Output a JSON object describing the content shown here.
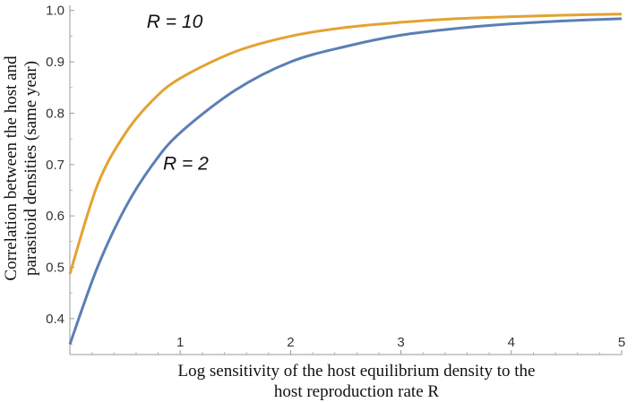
{
  "chart_data": {
    "type": "line",
    "title": "",
    "xlabel_line1": "Log sensitivity of the host equilibrium density to the",
    "xlabel_line2": "host reproduction rate R",
    "ylabel_line1": "Correlation between the host and",
    "ylabel_line2": "parasitoid densities (same year)",
    "xlim": [
      0,
      5
    ],
    "ylim": [
      0.33,
      1.01
    ],
    "x_ticks": [
      "1",
      "2",
      "3",
      "4",
      "5"
    ],
    "y_ticks": [
      "0.4",
      "0.5",
      "0.6",
      "0.7",
      "0.8",
      "0.9",
      "1.0"
    ],
    "grid": false,
    "series": [
      {
        "name": "R = 10",
        "color": "#e3a231",
        "x": [
          0,
          0.25,
          0.5,
          0.75,
          1.0,
          1.5,
          2.0,
          2.5,
          3.0,
          3.5,
          4.0,
          4.5,
          5.0
        ],
        "values": [
          0.487,
          0.66,
          0.76,
          0.825,
          0.868,
          0.92,
          0.95,
          0.967,
          0.977,
          0.984,
          0.988,
          0.991,
          0.993
        ]
      },
      {
        "name": "R = 2",
        "color": "#5b7fb5",
        "x": [
          0,
          0.25,
          0.5,
          0.75,
          1.0,
          1.5,
          2.0,
          2.5,
          3.0,
          3.5,
          4.0,
          4.5,
          5.0
        ],
        "values": [
          0.35,
          0.5,
          0.615,
          0.7,
          0.762,
          0.845,
          0.9,
          0.93,
          0.952,
          0.965,
          0.974,
          0.98,
          0.984
        ]
      }
    ],
    "annotations": [
      {
        "label": "R  = 10",
        "x": 0.95,
        "y": 0.966
      },
      {
        "label": "R  = 2",
        "x": 1.05,
        "y": 0.69
      }
    ]
  }
}
